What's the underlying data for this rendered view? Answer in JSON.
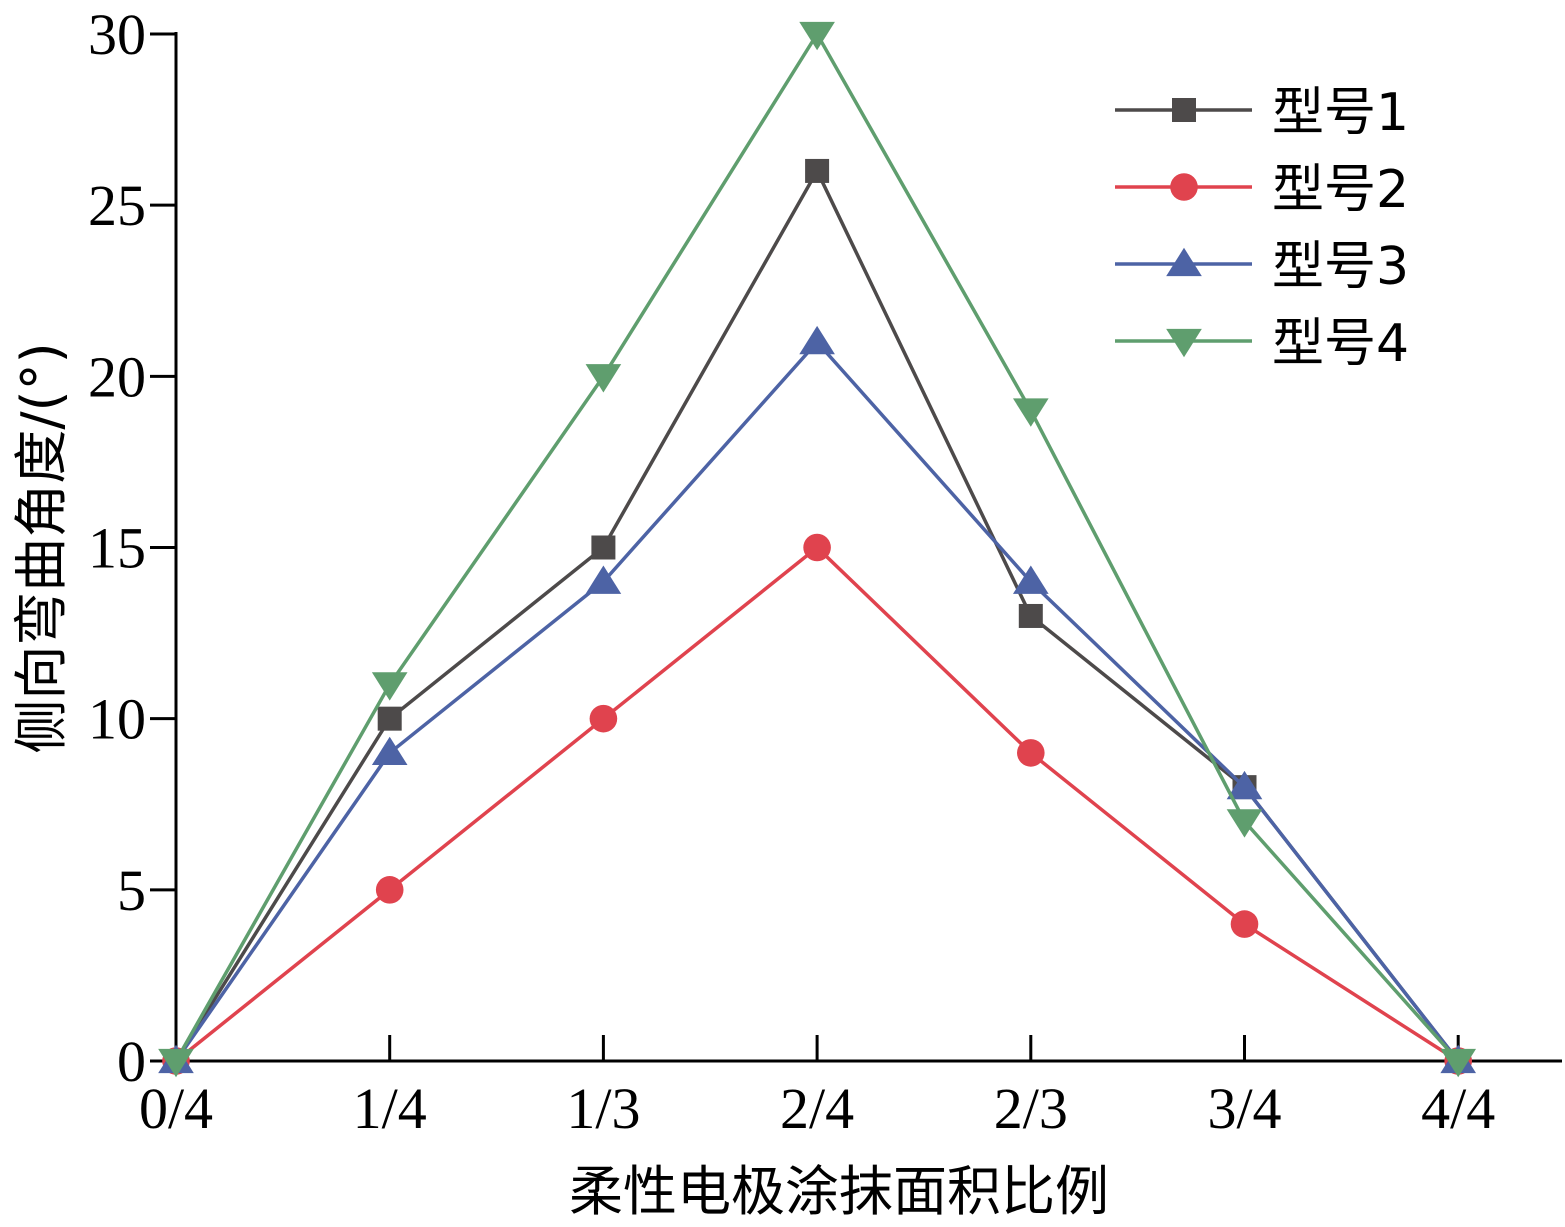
{
  "chart_data": {
    "type": "line",
    "title": "",
    "xlabel": "柔性电极涂抹面积比例",
    "ylabel": "侧向弯曲角度/(°)",
    "categories": [
      "0/4",
      "1/4",
      "1/3",
      "2/4",
      "2/3",
      "3/4",
      "4/4"
    ],
    "ylim": [
      0,
      30
    ],
    "yticks": [
      "0",
      "5",
      "10",
      "15",
      "20",
      "25",
      "30"
    ],
    "yticks_values": [
      0,
      5,
      10,
      15,
      20,
      25,
      30
    ],
    "grid": false,
    "legend_position": "top-right",
    "series": [
      {
        "name": "型号1",
        "marker": "square",
        "color": "#4d4a4a",
        "values": [
          0,
          10,
          15,
          26,
          13,
          8,
          0
        ]
      },
      {
        "name": "型号2",
        "marker": "circle",
        "color": "#e0434e",
        "values": [
          0,
          5,
          10,
          15,
          9,
          4,
          0
        ]
      },
      {
        "name": "型号3",
        "marker": "triangle-up",
        "color": "#4d63a5",
        "values": [
          0,
          9,
          14,
          21,
          14,
          8,
          0
        ]
      },
      {
        "name": "型号4",
        "marker": "triangle-down",
        "color": "#5f9e6e",
        "values": [
          0,
          11,
          20,
          30,
          19,
          7,
          0
        ]
      }
    ]
  }
}
